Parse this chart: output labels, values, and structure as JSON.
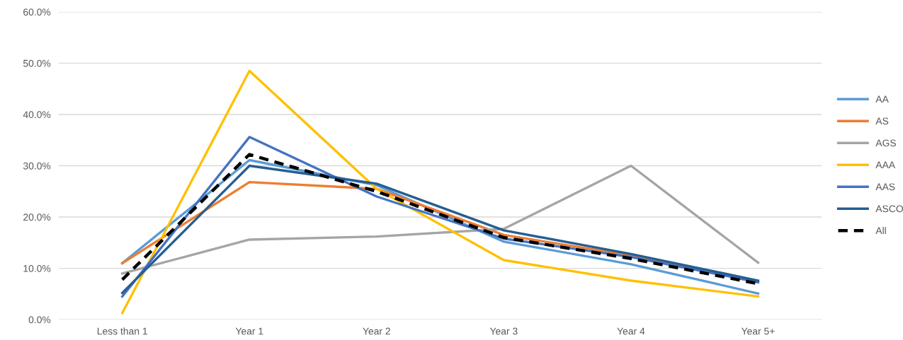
{
  "chart_data": {
    "type": "line",
    "categories": [
      "Less than 1",
      "Year 1",
      "Year 2",
      "Year 3",
      "Year 4",
      "Year 5+"
    ],
    "series": [
      {
        "name": "AA",
        "color": "#5b9bd5",
        "values": [
          11.0,
          31.1,
          26.2,
          15.2,
          10.8,
          5.1
        ]
      },
      {
        "name": "AS",
        "color": "#ed7d31",
        "values": [
          11.0,
          26.8,
          25.5,
          16.5,
          12.5,
          7.3
        ]
      },
      {
        "name": "AGS",
        "color": "#a5a5a5",
        "values": [
          9.0,
          15.6,
          16.2,
          17.7,
          30.0,
          11.1
        ]
      },
      {
        "name": "AAA",
        "color": "#ffc000",
        "values": [
          1.3,
          48.5,
          25.5,
          11.6,
          7.6,
          4.5
        ]
      },
      {
        "name": "AAS",
        "color": "#4472c4",
        "values": [
          4.5,
          35.6,
          24.0,
          15.8,
          12.2,
          7.3
        ]
      },
      {
        "name": "ASCO",
        "color": "#255e91",
        "values": [
          5.2,
          30.0,
          26.5,
          17.4,
          12.8,
          7.6
        ]
      },
      {
        "name": "All",
        "color": "#000000",
        "values": [
          7.8,
          32.2,
          25.0,
          16.0,
          11.9,
          7.0
        ],
        "line_style": "dashed"
      }
    ],
    "ylim": [
      0,
      60
    ],
    "yticks": [
      {
        "value": 0,
        "label": "0.0%"
      },
      {
        "value": 10,
        "label": "10.0%"
      },
      {
        "value": 20,
        "label": "20.0%"
      },
      {
        "value": 30,
        "label": "30.0%"
      },
      {
        "value": 40,
        "label": "40.0%"
      },
      {
        "value": 50,
        "label": "50.0%"
      },
      {
        "value": 60,
        "label": "60.0%"
      }
    ],
    "grid": "y",
    "legend": "right",
    "line_style": "solid",
    "marker": "none"
  }
}
